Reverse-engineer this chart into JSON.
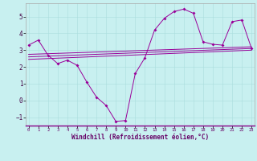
{
  "x": [
    0,
    1,
    2,
    3,
    4,
    5,
    6,
    7,
    8,
    9,
    10,
    11,
    12,
    13,
    14,
    15,
    16,
    17,
    18,
    19,
    20,
    21,
    22,
    23
  ],
  "line1": [
    3.3,
    3.6,
    2.7,
    2.2,
    2.4,
    2.1,
    1.1,
    0.2,
    -0.3,
    -1.25,
    -1.2,
    1.6,
    2.55,
    4.2,
    4.9,
    5.3,
    5.45,
    5.2,
    3.5,
    3.35,
    3.3,
    4.7,
    4.8,
    3.1
  ],
  "line2_x": [
    0,
    23
  ],
  "line2_y": [
    2.75,
    3.2
  ],
  "line3_x": [
    0,
    23
  ],
  "line3_y": [
    2.6,
    3.1
  ],
  "line4_x": [
    0,
    23
  ],
  "line4_y": [
    2.45,
    3.0
  ],
  "background_color": "#c8f0f0",
  "line_color": "#990099",
  "xlabel": "Windchill (Refroidissement éolien,°C)",
  "ylim": [
    -1.5,
    5.8
  ],
  "xlim": [
    -0.3,
    23.3
  ],
  "yticks": [
    -1,
    0,
    1,
    2,
    3,
    4,
    5
  ],
  "xticks": [
    0,
    1,
    2,
    3,
    4,
    5,
    6,
    7,
    8,
    9,
    10,
    11,
    12,
    13,
    14,
    15,
    16,
    17,
    18,
    19,
    20,
    21,
    22,
    23
  ]
}
